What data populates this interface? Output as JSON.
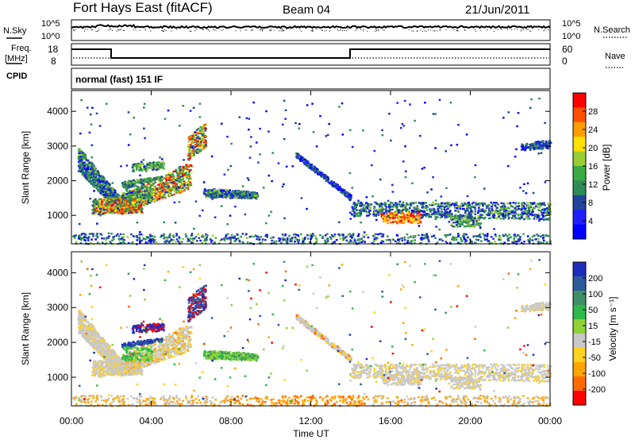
{
  "header": {
    "station": "Fort Hays East (fitACF)",
    "beam": "Beam 04",
    "date": "21/Jun/2011"
  },
  "top_panel": {
    "nsky_label": "N.Sky",
    "nsky_ticks": [
      "10^5",
      "10^0"
    ],
    "nsearch_label": "N.Search",
    "nsearch_ticks": [
      "10^5",
      "10^0"
    ],
    "freq_label_1": "Freq.",
    "freq_label_2": "[MHz]",
    "freq_ticks": [
      "18",
      "8"
    ],
    "nave_label": "Nave",
    "nave_ticks": [
      "60",
      "0"
    ],
    "cpid_label": "CPID",
    "cpid_text": "normal (fast) 151 IF"
  },
  "chart_data": [
    {
      "type": "heatmap",
      "name": "power",
      "ylabel": "Slant Range [km]",
      "yticks": [
        1000,
        2000,
        3000,
        4000
      ],
      "ylim": [
        180,
        4600
      ],
      "xticks": [
        "00:00",
        "04:00",
        "08:00",
        "12:00",
        "16:00",
        "20:00",
        "00:00"
      ],
      "xlim_hours": [
        0,
        24
      ],
      "colorbar": {
        "label": "Power [dB]",
        "ticks": [
          "28",
          "24",
          "20",
          "16",
          "12",
          "8",
          "4"
        ],
        "colors": [
          "#ff0000",
          "#ff5000",
          "#ff9c00",
          "#ffe000",
          "#9acd32",
          "#3aaa45",
          "#2e8b57",
          "#22449a",
          "#1e1eff",
          "#0000ff"
        ]
      },
      "regions": [
        {
          "t0": 0.3,
          "t1": 6.5,
          "r0": 1000,
          "r1": 3300,
          "level": "mixed"
        },
        {
          "t0": 6.5,
          "t1": 9.5,
          "r0": 1500,
          "r1": 1800,
          "level": "mid"
        },
        {
          "t0": 11.2,
          "t1": 14.0,
          "r0": 1500,
          "r1": 2800,
          "level": "low"
        },
        {
          "t0": 14.0,
          "t1": 24.0,
          "r0": 700,
          "r1": 1400,
          "level": "mixed"
        }
      ]
    },
    {
      "type": "heatmap",
      "name": "velocity",
      "ylabel": "Slant Range [km]",
      "yticks": [
        1000,
        2000,
        3000,
        4000
      ],
      "ylim": [
        180,
        4600
      ],
      "xticks": [
        "00:00",
        "04:00",
        "08:00",
        "12:00",
        "16:00",
        "20:00",
        "00:00"
      ],
      "xlabel": "Time UT",
      "colorbar": {
        "label": "Velocity [m s⁻¹]",
        "ticks": [
          "200",
          "100",
          "50",
          "15",
          "-15",
          "-50",
          "-100",
          "-200"
        ],
        "colors": [
          "#1e2ebc",
          "#2e5a9c",
          "#3f8f66",
          "#2fb84a",
          "#8ed23a",
          "#c8c8c8",
          "#ffd21e",
          "#ffa500",
          "#ff6a00",
          "#ff0000"
        ]
      }
    }
  ]
}
